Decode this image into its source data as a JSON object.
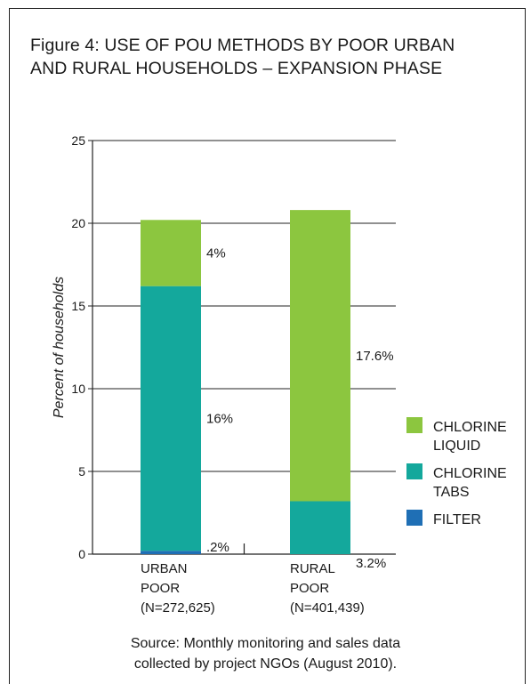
{
  "title": {
    "line1": "Figure 4: USE OF  POU  METHODS BY POOR URBAN",
    "line2": "AND RURAL HOUSEHOLDS – EXPANSION PHASE"
  },
  "source": {
    "line1": "Source: Monthly monitoring and sales data",
    "line2": "collected by project NGOs (August 2010)."
  },
  "chart_data": {
    "type": "bar",
    "stacked": true,
    "ylabel": "Percent of households",
    "ylim": [
      0,
      25
    ],
    "yticks": [
      0,
      5,
      10,
      15,
      20,
      25
    ],
    "grid": true,
    "legend_position": "right",
    "categories": [
      [
        "URBAN",
        "POOR",
        "(N=272,625)"
      ],
      [
        "RURAL",
        "POOR",
        "(N=401,439)"
      ]
    ],
    "series": [
      {
        "name": "FILTER",
        "color": "#1f6fb5",
        "values": [
          0.2,
          0
        ],
        "labels": [
          ".2%",
          ""
        ]
      },
      {
        "name": "CHLORINE TABS",
        "color": "#14a89c",
        "values": [
          16,
          3.2
        ],
        "labels": [
          "16%",
          "3.2%"
        ]
      },
      {
        "name": "CHLORINE LIQUID",
        "color": "#8cc63f",
        "values": [
          4,
          17.6
        ],
        "labels": [
          "4%",
          "17.6%"
        ]
      }
    ],
    "legend": [
      {
        "series": "CHLORINE LIQUID",
        "lines": [
          "CHLORINE",
          "LIQUID"
        ],
        "color": "#8cc63f"
      },
      {
        "series": "CHLORINE TABS",
        "lines": [
          "CHLORINE",
          "TABS"
        ],
        "color": "#14a89c"
      },
      {
        "series": "FILTER",
        "lines": [
          "FILTER"
        ],
        "color": "#1f6fb5"
      }
    ]
  }
}
